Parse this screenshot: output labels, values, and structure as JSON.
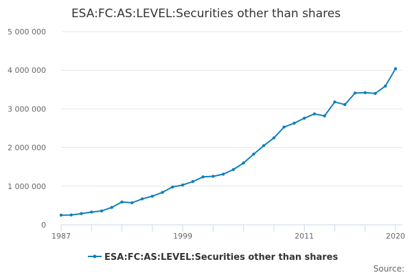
{
  "chart_data": {
    "type": "line",
    "title": "ESA:FC:AS:LEVEL:Securities other than shares",
    "xlabel": "",
    "ylabel": "",
    "xlim": [
      1987,
      2020
    ],
    "ylim": [
      0,
      5000000
    ],
    "y_ticks": [
      0,
      1000000,
      2000000,
      3000000,
      4000000,
      5000000
    ],
    "y_tick_labels": [
      "0",
      "1 000 000",
      "2 000 000",
      "3 000 000",
      "4 000 000",
      "5 000 000"
    ],
    "x_tick_labels": [
      "1987",
      "1999",
      "2011",
      "2020"
    ],
    "x_tick_values": [
      1987,
      1999,
      2011,
      2020
    ],
    "x_minor_ticks": [
      1987,
      1990,
      1993,
      1996,
      1999,
      2002,
      2005,
      2008,
      2011,
      2014,
      2017,
      2020
    ],
    "legend_position": "bottom",
    "color": "#0f7fba",
    "grid": true,
    "series": [
      {
        "name": "ESA:FC:AS:LEVEL:Securities other than shares",
        "x": [
          1987,
          1988,
          1989,
          1990,
          1991,
          1992,
          1993,
          1994,
          1995,
          1996,
          1997,
          1998,
          1999,
          2000,
          2001,
          2002,
          2003,
          2004,
          2005,
          2006,
          2007,
          2008,
          2009,
          2010,
          2011,
          2012,
          2013,
          2014,
          2015,
          2016,
          2017,
          2018,
          2019,
          2020
        ],
        "values": [
          250000,
          255000,
          290000,
          330000,
          360000,
          450000,
          590000,
          570000,
          670000,
          740000,
          840000,
          980000,
          1030000,
          1120000,
          1240000,
          1255000,
          1310000,
          1430000,
          1600000,
          1830000,
          2050000,
          2250000,
          2530000,
          2630000,
          2760000,
          2870000,
          2820000,
          3180000,
          3110000,
          3410000,
          3420000,
          3400000,
          3590000,
          4040000
        ]
      }
    ]
  },
  "source_label": "Source:"
}
